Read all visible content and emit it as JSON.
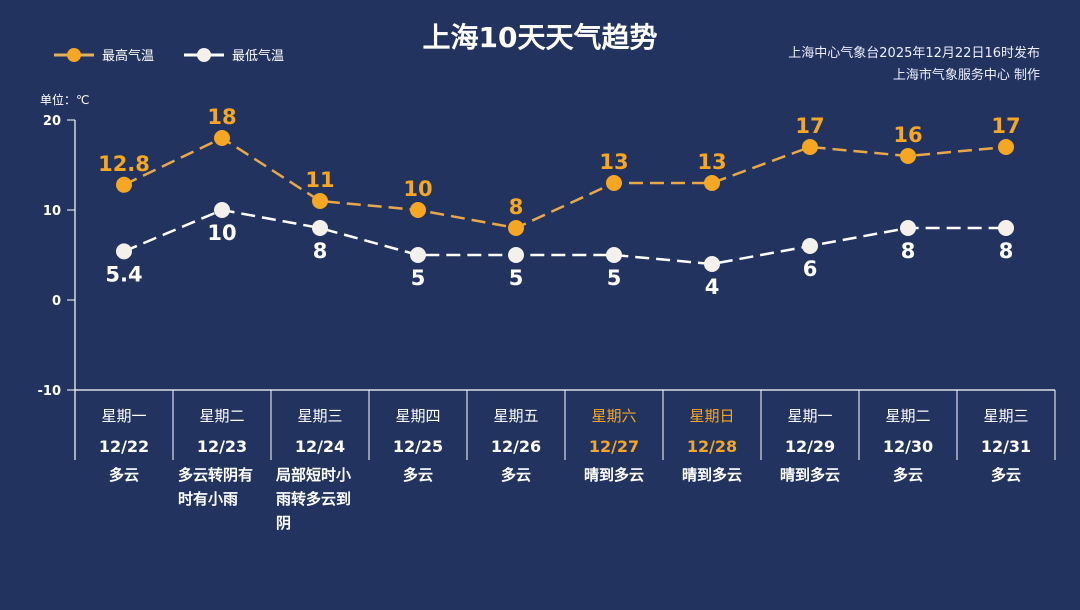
{
  "title": "上海10天天气趋势",
  "source_line1": "上海中心气象台2025年12月22日16时发布",
  "source_line2": "上海市气象服务中心 制作",
  "colors": {
    "background": "#22335f",
    "max": "#f5a623",
    "min": "#f4f1ec",
    "weekend": "#f5a623"
  },
  "chart_data": {
    "type": "line",
    "title": "上海10天天气趋势",
    "unit_label": "单位：℃",
    "ylim": [
      -10,
      20
    ],
    "yticks": [
      20,
      10,
      0,
      -10
    ],
    "grid": false,
    "legend_placement": "top-left",
    "categories": [
      "12/22",
      "12/23",
      "12/24",
      "12/25",
      "12/26",
      "12/27",
      "12/28",
      "12/29",
      "12/30",
      "12/31"
    ],
    "weekdays": [
      "星期一",
      "星期二",
      "星期三",
      "星期四",
      "星期五",
      "星期六",
      "星期日",
      "星期一",
      "星期二",
      "星期三"
    ],
    "weekend": [
      false,
      false,
      false,
      false,
      false,
      true,
      true,
      false,
      false,
      false
    ],
    "weather": [
      "多云",
      "多云转阴有时有小雨",
      "局部短时小雨转多云到阴",
      "多云",
      "多云",
      "晴到多云",
      "晴到多云",
      "晴到多云",
      "多云",
      "多云"
    ],
    "series": [
      {
        "name": "最高气温",
        "labels": [
          "12.8",
          "18",
          "11",
          "10",
          "8",
          "13",
          "13",
          "17",
          "16",
          "17"
        ],
        "values": [
          12.8,
          18,
          11,
          10,
          8,
          13,
          13,
          17,
          16,
          17
        ]
      },
      {
        "name": "最低气温",
        "labels": [
          "5.4",
          "10",
          "8",
          "5",
          "5",
          "5",
          "4",
          "6",
          "8",
          "8"
        ],
        "values": [
          5.4,
          10,
          8,
          5,
          5,
          5,
          4,
          6,
          8,
          8
        ]
      }
    ]
  }
}
